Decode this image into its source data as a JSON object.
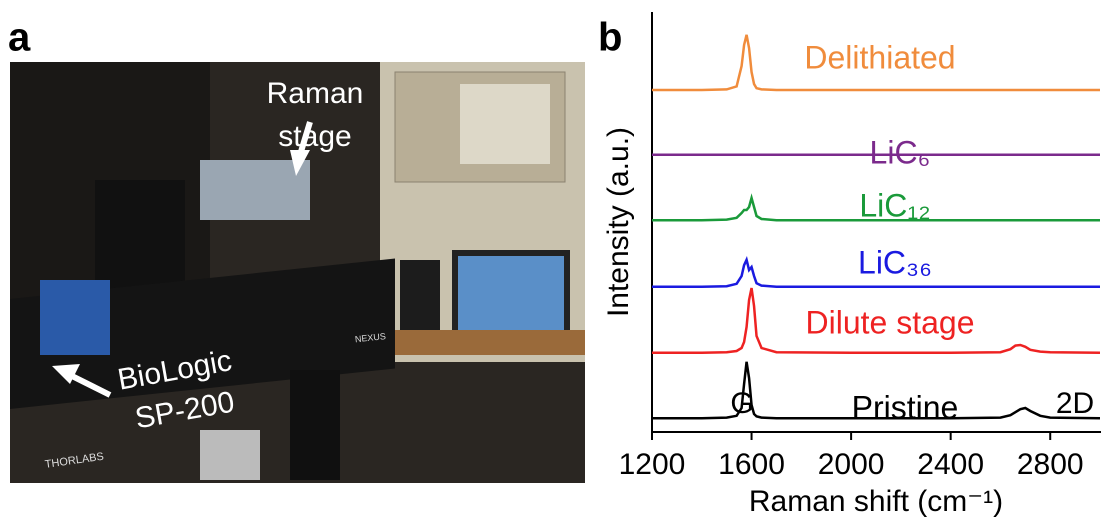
{
  "panel_a": {
    "label": "a",
    "annotations": [
      "Raman",
      "stage",
      "BioLogic",
      "SP-200"
    ],
    "photo_texts": [
      "THORLABS",
      "NEXUS"
    ]
  },
  "chart_data": {
    "type": "line",
    "panel_label": "b",
    "x_label": "Raman shift (cm⁻¹)",
    "y_label": "Intensity (a.u.)",
    "x": [
      1200,
      1400,
      1500,
      1540,
      1560,
      1570,
      1580,
      1590,
      1600,
      1610,
      1620,
      1640,
      1700,
      2000,
      2400,
      2600,
      2640,
      2660,
      2680,
      2700,
      2720,
      2760,
      2800,
      3000
    ],
    "series": [
      {
        "name": "Pristine",
        "color": "#000000",
        "values": [
          0.23,
          0.23,
          0.24,
          0.27,
          0.4,
          0.8,
          1.17,
          0.9,
          0.45,
          0.3,
          0.26,
          0.24,
          0.23,
          0.23,
          0.23,
          0.24,
          0.28,
          0.33,
          0.38,
          0.4,
          0.35,
          0.27,
          0.24,
          0.23
        ]
      },
      {
        "name": "Dilute stage",
        "color": "#ee2222",
        "values": [
          1.32,
          1.32,
          1.33,
          1.35,
          1.4,
          1.5,
          1.75,
          2.2,
          2.4,
          2.1,
          1.6,
          1.4,
          1.33,
          1.32,
          1.32,
          1.33,
          1.38,
          1.44,
          1.45,
          1.42,
          1.37,
          1.34,
          1.33,
          1.32
        ]
      },
      {
        "name": "LiC₃₆",
        "color": "#1a1ae0",
        "values": [
          2.42,
          2.42,
          2.43,
          2.47,
          2.6,
          2.78,
          2.87,
          2.7,
          2.75,
          2.6,
          2.48,
          2.44,
          2.42,
          2.42,
          2.42,
          2.42,
          2.42,
          2.42,
          2.42,
          2.42,
          2.42,
          2.42,
          2.42,
          2.42
        ]
      },
      {
        "name": "LiC₁₂",
        "color": "#1a9a3a",
        "values": [
          3.53,
          3.53,
          3.54,
          3.57,
          3.65,
          3.7,
          3.7,
          3.75,
          3.9,
          3.75,
          3.6,
          3.55,
          3.53,
          3.53,
          3.53,
          3.53,
          3.53,
          3.53,
          3.53,
          3.53,
          3.53,
          3.53,
          3.53,
          3.53
        ]
      },
      {
        "name": "LiC₆",
        "color": "#7b2a8c",
        "values": [
          4.62,
          4.62,
          4.62,
          4.62,
          4.62,
          4.62,
          4.62,
          4.62,
          4.62,
          4.62,
          4.62,
          4.62,
          4.62,
          4.62,
          4.62,
          4.62,
          4.62,
          4.62,
          4.62,
          4.62,
          4.62,
          4.62,
          4.62,
          4.62
        ]
      },
      {
        "name": "Delithiated",
        "color": "#f08c3c",
        "values": [
          5.7,
          5.7,
          5.71,
          5.76,
          6.1,
          6.45,
          6.62,
          6.4,
          6.0,
          5.8,
          5.73,
          5.71,
          5.7,
          5.7,
          5.7,
          5.7,
          5.7,
          5.7,
          5.7,
          5.7,
          5.7,
          5.7,
          5.7,
          5.7
        ]
      }
    ],
    "annotations": [
      "G",
      "2D"
    ],
    "xlim": [
      1200,
      3000
    ],
    "xticks": [
      1200,
      1600,
      2000,
      2400,
      2800
    ],
    "ylim": [
      0,
      7
    ]
  }
}
